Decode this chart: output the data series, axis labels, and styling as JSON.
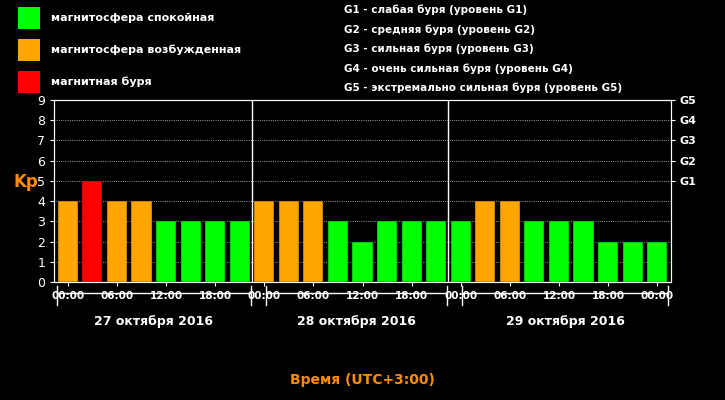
{
  "background_color": "#000000",
  "plot_bg_color": "#000000",
  "bar_edge_color": "#000000",
  "title_color": "#ff8c00",
  "kp_label_color": "#ff8c00",
  "axis_label_color": "#ffffff",
  "tick_label_color": "#ffffff",
  "grid_color": "#ffffff",
  "right_label_color": "#ffffff",
  "legend_text_color": "#ffffff",
  "bar_values": [
    4,
    5,
    4,
    4,
    3,
    3,
    3,
    3,
    4,
    4,
    4,
    3,
    2,
    3,
    3,
    3,
    3,
    4,
    4,
    3,
    3,
    3,
    2,
    2,
    2
  ],
  "bar_colors": [
    "#ffa500",
    "#ff0000",
    "#ffa500",
    "#ffa500",
    "#00ff00",
    "#00ff00",
    "#00ff00",
    "#00ff00",
    "#ffa500",
    "#ffa500",
    "#ffa500",
    "#00ff00",
    "#00ff00",
    "#00ff00",
    "#00ff00",
    "#00ff00",
    "#00ff00",
    "#ffa500",
    "#ffa500",
    "#00ff00",
    "#00ff00",
    "#00ff00",
    "#00ff00",
    "#00ff00",
    "#00ff00"
  ],
  "day_dividers": [
    7.5,
    15.5
  ],
  "day_labels": [
    "27 октября 2016",
    "28 октября 2016",
    "29 октября 2016"
  ],
  "xlabel": "Время (UTC+3:00)",
  "ylabel": "Kp",
  "ylim": [
    0,
    9
  ],
  "yticks": [
    0,
    1,
    2,
    3,
    4,
    5,
    6,
    7,
    8,
    9
  ],
  "right_ytick_positions": [
    5,
    6,
    7,
    8,
    9
  ],
  "right_ytick_names": [
    "G1",
    "G2",
    "G3",
    "G4",
    "G5"
  ],
  "xtick_labels": [
    "00:00",
    "06:00",
    "12:00",
    "18:00",
    "00:00",
    "06:00",
    "12:00",
    "18:00",
    "00:00",
    "06:00",
    "12:00",
    "18:00",
    "00:00"
  ],
  "xtick_positions": [
    0,
    2,
    4,
    6,
    8,
    10,
    12,
    14,
    16,
    18,
    20,
    22,
    24
  ],
  "legend_items": [
    {
      "label": "магнитосфера спокойная",
      "color": "#00ff00"
    },
    {
      "label": "магнитосфера возбужденная",
      "color": "#ffa500"
    },
    {
      "label": "магнитная буря",
      "color": "#ff0000"
    }
  ],
  "g_descriptions": [
    "G1 - слабая буря (уровень G1)",
    "G2 - средняя буря (уровень G2)",
    "G3 - сильная буря (уровень G3)",
    "G4 - очень сильная буря (уровень G4)",
    "G5 - экстремально сильная буря (уровень G5)"
  ]
}
